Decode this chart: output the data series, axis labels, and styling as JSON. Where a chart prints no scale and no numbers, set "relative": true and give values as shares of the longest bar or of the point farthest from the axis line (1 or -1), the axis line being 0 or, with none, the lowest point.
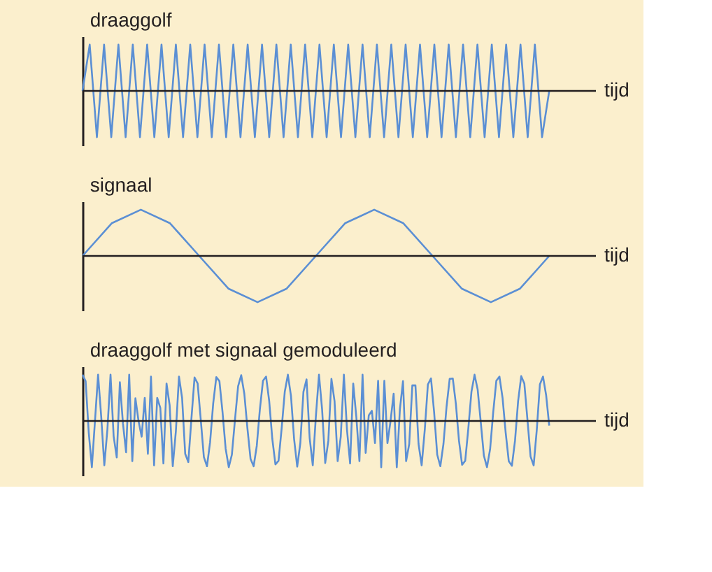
{
  "chart_data": [
    {
      "type": "line",
      "title": "draaggolf",
      "xlabel": "tijd",
      "relative": true,
      "tick_labels": false,
      "legend": false,
      "marker": "none",
      "line_style": "solid",
      "categories": [
        null,
        null,
        null,
        null,
        null,
        null,
        null,
        null,
        null,
        null,
        null,
        null,
        null,
        null,
        null,
        null,
        null,
        null,
        null,
        null,
        null,
        null,
        null,
        null,
        null,
        null,
        null,
        null,
        null,
        null,
        null,
        null,
        null,
        null,
        null,
        null,
        null,
        null,
        null,
        null,
        null,
        null,
        null,
        null,
        null,
        null,
        null,
        null,
        null,
        null,
        null,
        null,
        null,
        null,
        null,
        null,
        null,
        null,
        null,
        null,
        null,
        null,
        null,
        null,
        null,
        null
      ],
      "series": [
        {
          "color": "#5b8fd4",
          "values": [
            0,
            1,
            -1,
            1,
            -1,
            1,
            -1,
            1,
            -1,
            1,
            -1,
            1,
            -1,
            1,
            -1,
            1,
            -1,
            1,
            -1,
            1,
            -1,
            1,
            -1,
            1,
            -1,
            1,
            -1,
            1,
            -1,
            1,
            -1,
            1,
            -1,
            1,
            -1,
            1,
            -1,
            1,
            -1,
            1,
            -1,
            1,
            -1,
            1,
            -1,
            1,
            -1,
            1,
            -1,
            1,
            -1,
            1,
            -1,
            1,
            -1,
            1,
            -1,
            1,
            -1,
            1,
            -1,
            1,
            -1,
            1,
            -1,
            0
          ]
        }
      ]
    },
    {
      "type": "line",
      "title": "signaal",
      "xlabel": "tijd",
      "relative": true,
      "tick_labels": false,
      "legend": false,
      "marker": "none",
      "line_style": "solid",
      "categories": [
        null,
        null,
        null,
        null,
        null,
        null,
        null,
        null,
        null,
        null,
        null,
        null,
        null,
        null,
        null,
        null,
        null
      ],
      "series": [
        {
          "color": "#5b8fd4",
          "values": [
            0,
            0.707,
            1,
            0.707,
            0,
            -0.707,
            -1,
            -0.707,
            0,
            0.707,
            1,
            0.707,
            0,
            -0.707,
            -1,
            -0.707,
            0
          ]
        }
      ]
    },
    {
      "type": "line",
      "title": "draaggolf met signaal gemoduleerd",
      "xlabel": "tijd",
      "relative": true,
      "tick_labels": false,
      "legend": false,
      "marker": "none",
      "line_style": "solid",
      "categories": [
        null,
        null,
        null,
        null,
        null,
        null,
        null,
        null,
        null,
        null,
        null,
        null,
        null,
        null,
        null,
        null,
        null,
        null,
        null,
        null,
        null,
        null,
        null,
        null,
        null,
        null,
        null,
        null,
        null,
        null,
        null,
        null,
        null,
        null,
        null,
        null,
        null,
        null,
        null,
        null,
        null,
        null,
        null,
        null,
        null,
        null,
        null,
        null,
        null,
        null,
        null,
        null,
        null,
        null,
        null,
        null,
        null,
        null,
        null,
        null,
        null,
        null,
        null,
        null,
        null,
        null,
        null,
        null,
        null,
        null,
        null,
        null,
        null,
        null,
        null,
        null,
        null,
        null,
        null,
        null,
        null,
        null,
        null,
        null,
        null,
        null,
        null,
        null,
        null,
        null,
        null,
        null,
        null,
        null,
        null,
        null,
        null,
        null,
        null,
        null,
        null,
        null,
        null,
        null,
        null,
        null,
        null,
        null,
        null,
        null,
        null,
        null,
        null,
        null,
        null,
        null,
        null,
        null,
        null,
        null,
        null,
        null,
        null,
        null,
        null,
        null,
        null,
        null,
        null,
        null,
        null,
        null,
        null,
        null,
        null,
        null,
        null,
        null,
        null,
        null,
        null,
        null,
        null,
        null,
        null,
        null,
        null,
        null,
        null,
        null,
        null
      ],
      "series": [
        {
          "color": "#5b8fd4",
          "values": [
            1.0,
            0.86,
            -0.25,
            -1,
            0,
            1,
            0.1,
            -0.96,
            -0.18,
            1,
            -0.33,
            -0.79,
            0.84,
            -0.06,
            -0.68,
            1,
            -0.87,
            0.49,
            0,
            -0.34,
            0.5,
            -0.71,
            0.96,
            -0.96,
            0.5,
            0.28,
            -0.92,
            0.81,
            0.34,
            -0.98,
            -0.22,
            0.96,
            0.5,
            -0.71,
            -0.89,
            0.05,
            0.94,
            0.81,
            0.03,
            -0.78,
            -0.98,
            -0.46,
            0.38,
            0.95,
            0.86,
            0.19,
            -0.6,
            -1,
            -0.73,
            0.03,
            0.75,
            0.99,
            0.59,
            -0.16,
            -0.82,
            -0.98,
            -0.54,
            0.25,
            0.87,
            0.96,
            0.43,
            -0.39,
            -0.94,
            -0.86,
            -0.16,
            0.63,
            1,
            0.54,
            -0.39,
            -0.99,
            -0.48,
            0.63,
            0.9,
            -0.37,
            -0.96,
            0.1,
            1,
            0.25,
            -0.91,
            -0.43,
            0.91,
            0.43,
            -0.87,
            -0.34,
            1,
            -0.19,
            -0.92,
            0.81,
            0.09,
            -0.87,
            1,
            -0.69,
            0.12,
            0.22,
            -0.48,
            0.87,
            -1,
            0.87,
            -0.48,
            0,
            0.59,
            -1,
            0.25,
            0.86,
            -0.87,
            -0.5,
            0.77,
            0.77,
            -0.5,
            -0.96,
            -0.19,
            0.79,
            0.92,
            0.19,
            -0.73,
            -0.98,
            -0.5,
            0.31,
            0.91,
            0.92,
            0.37,
            -0.43,
            -0.95,
            -0.86,
            -0.16,
            0.63,
            1,
            0.68,
            -0.03,
            -0.75,
            -1,
            -0.61,
            0.19,
            0.87,
            0.96,
            0.5,
            -0.25,
            -0.87,
            -0.97,
            -0.43,
            0.43,
            0.97,
            0.81,
            0.03,
            -0.77,
            -0.96,
            -0.19,
            0.79,
            0.96,
            0.56,
            -0.1
          ]
        }
      ]
    }
  ]
}
